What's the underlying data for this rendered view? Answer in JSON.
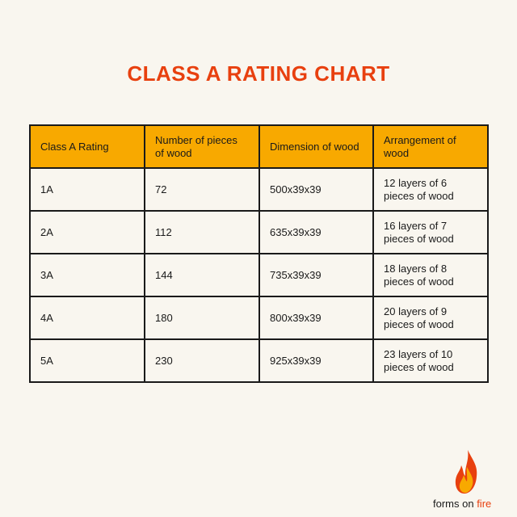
{
  "title": "CLASS A RATING CHART",
  "colors": {
    "title": "#e8400f",
    "header_bg": "#f8a900",
    "background": "#f9f6ef",
    "border": "#1a1a1a"
  },
  "table": {
    "headers": [
      "Class A Rating",
      "Number of pieces of wood",
      "Dimension of wood",
      "Arrangement of wood"
    ],
    "rows": [
      [
        "1A",
        "72",
        "500x39x39",
        "12 layers of 6 pieces of wood"
      ],
      [
        "2A",
        "112",
        "635x39x39",
        "16 layers of 7 pieces of wood"
      ],
      [
        "3A",
        "144",
        "735x39x39",
        "18 layers of 8 pieces of wood"
      ],
      [
        "4A",
        "180",
        "800x39x39",
        "20 layers of 9 pieces of wood"
      ],
      [
        "5A",
        "230",
        "925x39x39",
        "23 layers of 10 pieces of wood"
      ]
    ]
  },
  "logo": {
    "icon": "flame-icon",
    "text_main": "forms on ",
    "text_accent": "fire"
  }
}
